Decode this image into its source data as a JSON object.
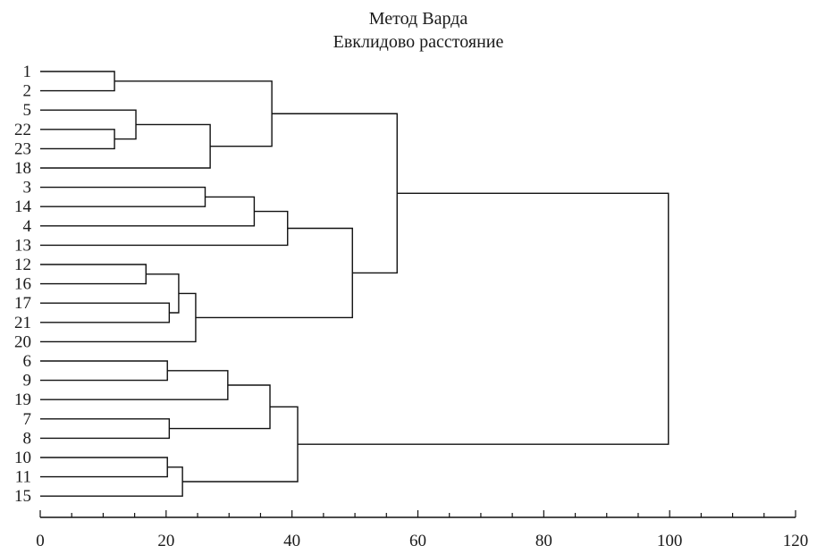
{
  "chart_data": {
    "type": "dendrogram",
    "title": "Метод Варда",
    "subtitle": "Евклидово расстояние",
    "xlim": [
      0,
      120
    ],
    "x_ticks": [
      0,
      20,
      40,
      60,
      80,
      100,
      120
    ],
    "minor_tick_step": 5,
    "leaves": [
      "1",
      "2",
      "5",
      "22",
      "23",
      "18",
      "3",
      "14",
      "4",
      "13",
      "12",
      "16",
      "17",
      "21",
      "20",
      "6",
      "9",
      "19",
      "7",
      "8",
      "10",
      "11",
      "15"
    ],
    "merges": [
      {
        "id": "c1",
        "children": [
          "1",
          "2"
        ],
        "height": 11.8
      },
      {
        "id": "c2",
        "children": [
          "22",
          "23"
        ],
        "height": 11.8
      },
      {
        "id": "c3",
        "children": [
          "5",
          "c2"
        ],
        "height": 15.2
      },
      {
        "id": "c4",
        "children": [
          "c3",
          "18"
        ],
        "height": 27.0
      },
      {
        "id": "c5",
        "children": [
          "c1",
          "c4"
        ],
        "height": 36.8
      },
      {
        "id": "c6",
        "children": [
          "3",
          "14"
        ],
        "height": 26.2
      },
      {
        "id": "c7",
        "children": [
          "c6",
          "4"
        ],
        "height": 34.0
      },
      {
        "id": "c8",
        "children": [
          "c7",
          "13"
        ],
        "height": 39.3
      },
      {
        "id": "c9",
        "children": [
          "12",
          "16"
        ],
        "height": 16.8
      },
      {
        "id": "c10",
        "children": [
          "17",
          "21"
        ],
        "height": 20.5
      },
      {
        "id": "c11",
        "children": [
          "c9",
          "c10"
        ],
        "height": 22.0
      },
      {
        "id": "c12",
        "children": [
          "c11",
          "20"
        ],
        "height": 24.7
      },
      {
        "id": "c13",
        "children": [
          "c8",
          "c12"
        ],
        "height": 49.6
      },
      {
        "id": "c14",
        "children": [
          "c5",
          "c13"
        ],
        "height": 56.7
      },
      {
        "id": "c15",
        "children": [
          "6",
          "9"
        ],
        "height": 20.2
      },
      {
        "id": "c16",
        "children": [
          "c15",
          "19"
        ],
        "height": 29.8
      },
      {
        "id": "c17",
        "children": [
          "7",
          "8"
        ],
        "height": 20.5
      },
      {
        "id": "c18",
        "children": [
          "c16",
          "c17"
        ],
        "height": 36.5
      },
      {
        "id": "c19",
        "children": [
          "10",
          "11"
        ],
        "height": 20.2
      },
      {
        "id": "c20",
        "children": [
          "c19",
          "15"
        ],
        "height": 22.6
      },
      {
        "id": "c21",
        "children": [
          "c18",
          "c20"
        ],
        "height": 40.9
      },
      {
        "id": "c22",
        "children": [
          "c14",
          "c21"
        ],
        "height": 99.8
      }
    ]
  }
}
